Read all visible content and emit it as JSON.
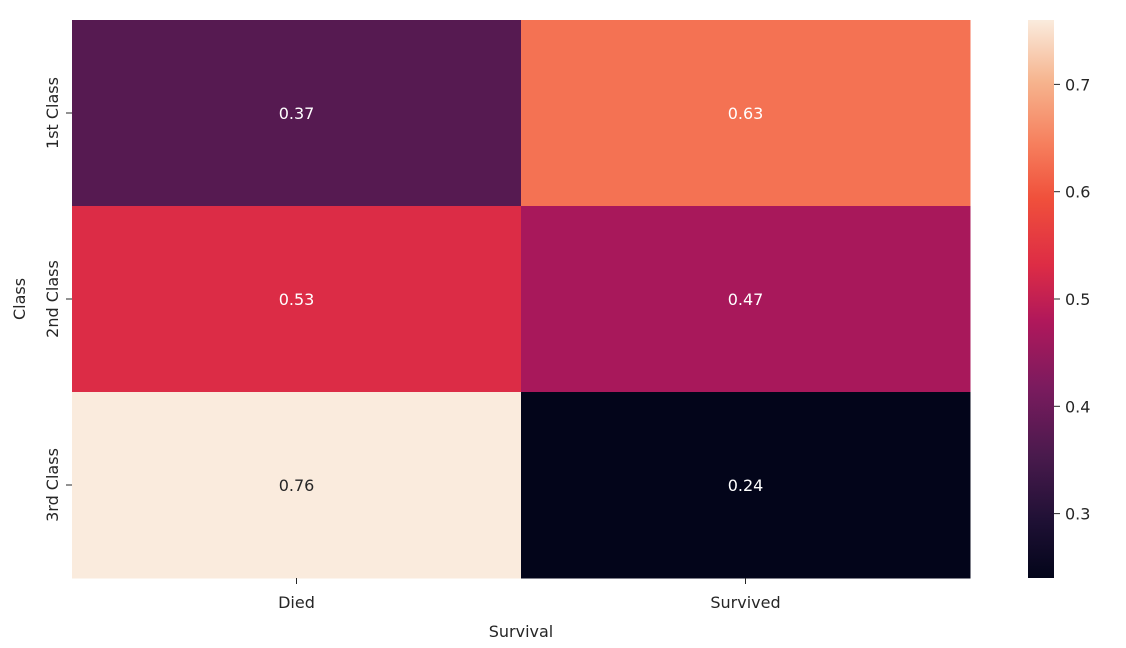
{
  "chart_data": {
    "type": "heatmap",
    "title": "",
    "xlabel": "Survival",
    "ylabel": "Class",
    "x_categories": [
      "Died",
      "Survived"
    ],
    "y_categories": [
      "1st Class",
      "2nd Class",
      "3rd Class"
    ],
    "values": [
      [
        0.37,
        0.63
      ],
      [
        0.53,
        0.47
      ],
      [
        0.76,
        0.24
      ]
    ],
    "annotations": [
      [
        "0.37",
        "0.63"
      ],
      [
        "0.53",
        "0.47"
      ],
      [
        "0.76",
        "0.24"
      ]
    ],
    "colormap": "rocket",
    "vmin": 0.24,
    "vmax": 0.76,
    "colorbar": {
      "ticks": [
        0.3,
        0.4,
        0.5,
        0.6,
        0.7
      ],
      "tick_labels": [
        "0.3",
        "0.4",
        "0.5",
        "0.6",
        "0.7"
      ]
    },
    "grid": false,
    "legend": "colorbar-right"
  }
}
